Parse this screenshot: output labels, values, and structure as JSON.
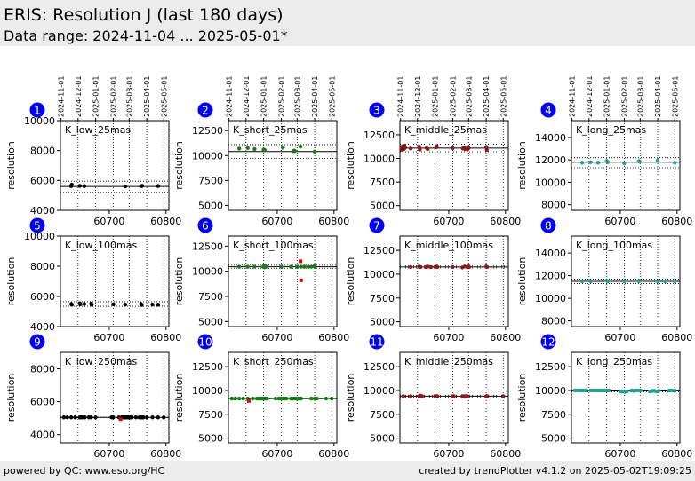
{
  "header": {
    "title": "ERIS: Resolution J (last 180 days)",
    "subtitle": "Data range: 2024-11-04 ... 2025-05-01*"
  },
  "footer": {
    "left": "powered by QC: www.eso.org/HC",
    "right": "created by trendPlotter v4.1.2 on 2025-05-02T19:09:25"
  },
  "chart_data": [
    {
      "number": "1",
      "type": "scatter",
      "label": "K_low_25mas",
      "ylabel": "resolution",
      "ylim": [
        4000,
        10000
      ],
      "yticks": [
        4000,
        6000,
        8000,
        10000
      ],
      "xlim": [
        60614,
        60805
      ],
      "xticks": [
        60700,
        60800
      ],
      "date_ticks": [
        "2024-11-01",
        "2024-12-01",
        "2025-01-01",
        "2025-02-01",
        "2025-03-01",
        "2025-04-01",
        "2025-05-01"
      ],
      "date_tick_mjd": [
        60615,
        60645,
        60676,
        60707,
        60735,
        60766,
        60796
      ],
      "ref_lines": [
        5600,
        5950,
        5200
      ],
      "vlines": [
        60645,
        60676,
        60707,
        60735,
        60766,
        60796
      ],
      "series": [
        {
          "color": "#000000",
          "x": [
            60633,
            60634,
            60648,
            60656,
            60728,
            60756,
            60758,
            60786
          ],
          "y": [
            5620,
            5720,
            5640,
            5620,
            5600,
            5620,
            5640,
            5630
          ]
        }
      ],
      "outliers": []
    },
    {
      "number": "2",
      "type": "scatter",
      "label": "K_short_25mas",
      "ylabel": "resolution",
      "ylim": [
        4500,
        13500
      ],
      "yticks": [
        5000,
        7500,
        10000,
        12500
      ],
      "xlim": [
        60614,
        60805
      ],
      "xticks": [
        60700,
        60800
      ],
      "date_ticks": [
        "2024-11-01",
        "2024-12-01",
        "2025-01-01",
        "2025-02-01",
        "2025-03-01",
        "2025-04-01",
        "2025-05-01"
      ],
      "date_tick_mjd": [
        60615,
        60645,
        60676,
        60707,
        60735,
        60766,
        60796
      ],
      "ref_lines": [
        10400,
        11100,
        9700
      ],
      "vlines": [
        60645,
        60676,
        60707,
        60735,
        60766,
        60796
      ],
      "series": [
        {
          "color": "#1a7a1a",
          "x": [
            60633,
            60648,
            60660,
            60676,
            60678,
            60710,
            60728,
            60730,
            60731,
            60741,
            60766
          ],
          "y": [
            10700,
            10750,
            10650,
            10600,
            10550,
            10800,
            10450,
            10500,
            10450,
            10900,
            10400
          ]
        }
      ],
      "outliers": []
    },
    {
      "number": "3",
      "type": "scatter",
      "label": "K_middle_25mas",
      "ylabel": "resolution",
      "ylim": [
        4500,
        14000
      ],
      "yticks": [
        5000,
        7500,
        10000,
        12500
      ],
      "xlim": [
        60614,
        60805
      ],
      "xticks": [
        60700,
        60800
      ],
      "date_ticks": [
        "2024-11-01",
        "2024-12-01",
        "2025-01-01",
        "2025-02-01",
        "2025-03-01",
        "2025-04-01",
        "2025-05-01"
      ],
      "date_tick_mjd": [
        60615,
        60645,
        60676,
        60707,
        60735,
        60766,
        60796
      ],
      "ref_lines": [
        11100,
        11500,
        10700
      ],
      "vlines": [
        60645,
        60676,
        60707,
        60735,
        60766,
        60796
      ],
      "series": [
        {
          "color": "#8b1a1a",
          "x": [
            60617,
            60618,
            60619,
            60620,
            60621,
            60622,
            60623,
            60633,
            60648,
            60649,
            60661,
            60663,
            60678,
            60679,
            60707,
            60725,
            60728,
            60729,
            60733,
            60735,
            60766,
            60767
          ],
          "y": [
            11100,
            10900,
            11300,
            11200,
            11000,
            11350,
            11150,
            11050,
            11250,
            10950,
            11100,
            11000,
            11200,
            11300,
            11100,
            11050,
            11150,
            11000,
            10950,
            11100,
            11200,
            10900
          ]
        }
      ],
      "outliers": []
    },
    {
      "number": "4",
      "type": "scatter",
      "label": "K_long_25mas",
      "ylabel": "resolution",
      "ylim": [
        7500,
        15500
      ],
      "yticks": [
        8000,
        10000,
        12000,
        14000
      ],
      "xlim": [
        60614,
        60805
      ],
      "xticks": [
        60700,
        60800
      ],
      "date_ticks": [
        "2024-11-01",
        "2024-12-01",
        "2025-01-01",
        "2025-02-01",
        "2025-03-01",
        "2025-04-01",
        "2025-05-01"
      ],
      "date_tick_mjd": [
        60615,
        60645,
        60676,
        60707,
        60735,
        60766,
        60796
      ],
      "ref_lines": [
        11800,
        12200,
        11300
      ],
      "vlines": [
        60645,
        60676,
        60707,
        60735,
        60766,
        60796
      ],
      "series": [
        {
          "color": "#2a9d8f",
          "x": [
            60633,
            60648,
            60661,
            60676,
            60678,
            60707,
            60733,
            60734,
            60766,
            60796
          ],
          "y": [
            11750,
            11800,
            11750,
            11900,
            11800,
            11700,
            11900,
            11850,
            11950,
            11750
          ]
        }
      ],
      "outliers": []
    },
    {
      "number": "5",
      "type": "scatter",
      "label": "K_low_100mas",
      "ylabel": "resolution",
      "ylim": [
        4000,
        10000
      ],
      "yticks": [
        4000,
        6000,
        8000,
        10000
      ],
      "xlim": [
        60614,
        60805
      ],
      "xticks": [
        60700,
        60800
      ],
      "date_ticks": [],
      "date_tick_mjd": [],
      "ref_lines": [
        5500,
        5650,
        5350
      ],
      "vlines": [
        60645,
        60676,
        60707,
        60735,
        60766,
        60796
      ],
      "series": [
        {
          "color": "#000000",
          "x": [
            60633,
            60634,
            60648,
            60649,
            60656,
            60668,
            60669,
            60707,
            60728,
            60756,
            60757,
            60776,
            60786
          ],
          "y": [
            5500,
            5450,
            5550,
            5480,
            5500,
            5520,
            5460,
            5480,
            5460,
            5500,
            5440,
            5470,
            5450
          ]
        }
      ],
      "outliers": []
    },
    {
      "number": "6",
      "type": "scatter",
      "label": "K_short_100mas",
      "ylabel": "resolution",
      "ylim": [
        4500,
        13500
      ],
      "yticks": [
        5000,
        7500,
        10000,
        12500
      ],
      "xlim": [
        60614,
        60805
      ],
      "xticks": [
        60700,
        60800
      ],
      "date_ticks": [],
      "date_tick_mjd": [],
      "ref_lines": [
        10450,
        10600,
        10300
      ],
      "vlines": [
        60645,
        60676,
        60707,
        60735,
        60766,
        60796
      ],
      "series": [
        {
          "color": "#1a7a1a",
          "x": [
            60633,
            60648,
            60660,
            60675,
            60676,
            60677,
            60678,
            60679,
            60680,
            60707,
            60724,
            60735,
            60742,
            60748,
            60755,
            60760,
            60765,
            60766
          ],
          "y": [
            10450,
            10450,
            10450,
            10450,
            10500,
            10400,
            10450,
            10500,
            10450,
            10450,
            10450,
            10450,
            10450,
            10450,
            10450,
            10450,
            10500,
            10450
          ]
        }
      ],
      "outliers": [
        {
          "color": "#e00000",
          "x": [
            60741,
            60742
          ],
          "y": [
            11000,
            9100
          ]
        }
      ]
    },
    {
      "number": "7",
      "type": "scatter",
      "label": "K_middle_100mas",
      "ylabel": "resolution",
      "ylim": [
        4500,
        14000
      ],
      "yticks": [
        5000,
        7500,
        10000,
        12500
      ],
      "xlim": [
        60614,
        60805
      ],
      "xticks": [
        60700,
        60800
      ],
      "date_ticks": [],
      "date_tick_mjd": [],
      "ref_lines": [
        10750,
        10850,
        10650
      ],
      "vlines": [
        60645,
        60676,
        60707,
        60735,
        60766,
        60796
      ],
      "series": [
        {
          "color": "#8b1a1a",
          "x": [
            60633,
            60648,
            60650,
            60660,
            60663,
            60668,
            60676,
            60679,
            60680,
            60707,
            60724,
            60728,
            60733,
            60735,
            60736,
            60766,
            60767
          ],
          "y": [
            10750,
            10800,
            10750,
            10750,
            10800,
            10750,
            10750,
            10800,
            10750,
            10750,
            10700,
            10800,
            10750,
            10800,
            10750,
            10800,
            10750
          ]
        }
      ],
      "outliers": []
    },
    {
      "number": "8",
      "type": "scatter",
      "label": "K_long_100mas",
      "ylabel": "resolution",
      "ylim": [
        7500,
        15500
      ],
      "yticks": [
        8000,
        10000,
        12000,
        14000
      ],
      "xlim": [
        60614,
        60805
      ],
      "xticks": [
        60700,
        60800
      ],
      "date_ticks": [],
      "date_tick_mjd": [],
      "ref_lines": [
        11500,
        11700,
        11300
      ],
      "vlines": [
        60645,
        60676,
        60707,
        60735,
        60766,
        60796
      ],
      "series": [
        {
          "color": "#2a9d8f",
          "x": [
            60633,
            60648,
            60676,
            60678,
            60707,
            60733,
            60734,
            60766,
            60779,
            60796
          ],
          "y": [
            11500,
            11500,
            11550,
            11500,
            11500,
            11500,
            11550,
            11500,
            11500,
            11500
          ]
        }
      ],
      "outliers": []
    },
    {
      "number": "9",
      "type": "scatter",
      "label": "K_low_250mas",
      "ylabel": "resolution",
      "ylim": [
        3500,
        9000
      ],
      "yticks": [
        4000,
        6000,
        8000
      ],
      "xlim": [
        60614,
        60805
      ],
      "xticks": [
        60700,
        60800
      ],
      "date_ticks": [],
      "date_tick_mjd": [],
      "ref_lines": [
        5050,
        5050,
        5050
      ],
      "vlines": [
        60645,
        60676,
        60707,
        60735,
        60766,
        60796
      ],
      "series": [
        {
          "color": "#000000",
          "x": [
            60620,
            60626,
            60633,
            60640,
            60648,
            60650,
            60653,
            60657,
            60664,
            60668,
            60676,
            60704,
            60707,
            60717,
            60722,
            60724,
            60726,
            60728,
            60730,
            60732,
            60734,
            60736,
            60738,
            60740,
            60747,
            60753,
            60756,
            60758,
            60760,
            60766,
            60776,
            60786,
            60796
          ],
          "y": [
            5050,
            5050,
            5050,
            5050,
            5050,
            5050,
            5050,
            5050,
            5050,
            5050,
            5050,
            5050,
            5050,
            5050,
            5050,
            5050,
            5050,
            5050,
            5050,
            5050,
            5050,
            5050,
            5050,
            5050,
            5050,
            5050,
            5050,
            5050,
            5050,
            5050,
            5050,
            5050,
            5050
          ]
        }
      ],
      "outliers": [
        {
          "color": "#e00000",
          "x": [
            60720
          ],
          "y": [
            4950
          ]
        }
      ]
    },
    {
      "number": "10",
      "type": "scatter",
      "label": "K_short_250mas",
      "ylabel": "resolution",
      "ylim": [
        4500,
        14000
      ],
      "yticks": [
        5000,
        7500,
        10000,
        12500
      ],
      "xlim": [
        60614,
        60805
      ],
      "xticks": [
        60700,
        60800
      ],
      "date_ticks": [],
      "date_tick_mjd": [],
      "ref_lines": [
        9150,
        9150,
        9150
      ],
      "vlines": [
        60645,
        60676,
        60707,
        60735,
        60766,
        60796
      ],
      "series": [
        {
          "color": "#1a7a1a",
          "x": [
            60620,
            60626,
            60633,
            60640,
            60648,
            60657,
            60664,
            60668,
            60670,
            60672,
            60674,
            60676,
            60678,
            60680,
            60682,
            60697,
            60703,
            60707,
            60710,
            60713,
            60716,
            60724,
            60728,
            60732,
            60734,
            60736,
            60738,
            60740,
            60742,
            60760,
            60766,
            60770,
            60786,
            60796
          ],
          "y": [
            9150,
            9150,
            9150,
            9150,
            9150,
            9150,
            9150,
            9150,
            9150,
            9150,
            9150,
            9150,
            9150,
            9150,
            9150,
            9150,
            9150,
            9150,
            9150,
            9150,
            9150,
            9150,
            9150,
            9150,
            9150,
            9150,
            9150,
            9150,
            9150,
            9150,
            9150,
            9150,
            9150,
            9150
          ]
        }
      ],
      "outliers": [
        {
          "color": "#e00000",
          "x": [
            60650
          ],
          "y": [
            8900
          ]
        }
      ]
    },
    {
      "number": "11",
      "type": "scatter",
      "label": "K_middle_250mas",
      "ylabel": "resolution",
      "ylim": [
        4500,
        14000
      ],
      "yticks": [
        5000,
        7500,
        10000,
        12500
      ],
      "xlim": [
        60614,
        60805
      ],
      "xticks": [
        60700,
        60800
      ],
      "date_ticks": [],
      "date_tick_mjd": [],
      "ref_lines": [
        9400,
        9500,
        9300
      ],
      "vlines": [
        60645,
        60676,
        60707,
        60735,
        60766,
        60796
      ],
      "series": [
        {
          "color": "#8b1a1a",
          "x": [
            60620,
            60633,
            60648,
            60650,
            60653,
            60676,
            60678,
            60680,
            60707,
            60709,
            60724,
            60728,
            60730,
            60733,
            60766,
            60768,
            60796
          ],
          "y": [
            9400,
            9400,
            9400,
            9450,
            9400,
            9400,
            9400,
            9400,
            9400,
            9400,
            9400,
            9400,
            9400,
            9400,
            9400,
            9400,
            9400
          ]
        }
      ],
      "outliers": []
    },
    {
      "number": "12",
      "type": "scatter",
      "label": "K_long_250mas",
      "ylabel": "resolution",
      "ylim": [
        4500,
        14000
      ],
      "yticks": [
        5000,
        7500,
        10000,
        12500
      ],
      "xlim": [
        60614,
        60805
      ],
      "xticks": [
        60700,
        60800
      ],
      "date_ticks": [],
      "date_tick_mjd": [],
      "ref_lines": [
        9950,
        10050,
        9850
      ],
      "vlines": [
        60645,
        60676,
        60707,
        60735,
        60766,
        60796
      ],
      "series": [
        {
          "color": "#2a9d8f",
          "x": [
            60620,
            60624,
            60628,
            60632,
            60636,
            60640,
            60648,
            60652,
            60656,
            60660,
            60664,
            60668,
            60672,
            60676,
            60680,
            60700,
            60704,
            60708,
            60712,
            60720,
            60724,
            60728,
            60732,
            60736,
            60752,
            60756,
            60760,
            60764,
            60768,
            60786,
            60790,
            60796
          ],
          "y": [
            10000,
            10000,
            10000,
            10000,
            10000,
            10000,
            10000,
            10000,
            10000,
            10000,
            10000,
            10000,
            10000,
            10000,
            10000,
            9900,
            9900,
            9850,
            9900,
            10000,
            9950,
            10000,
            10000,
            10000,
            9900,
            9950,
            9950,
            9900,
            9950,
            10000,
            10000,
            10000
          ]
        }
      ],
      "outliers": []
    }
  ]
}
